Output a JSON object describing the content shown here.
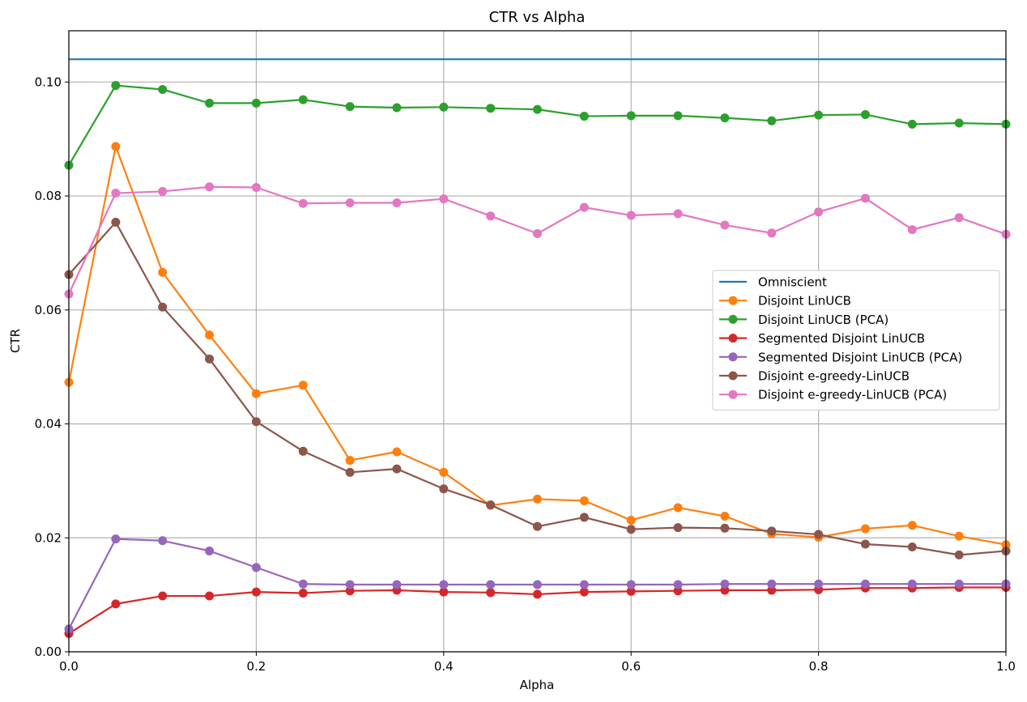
{
  "chart_data": {
    "type": "line",
    "title": "CTR vs Alpha",
    "xlabel": "Alpha",
    "ylabel": "CTR",
    "xlim": [
      0.0,
      1.0
    ],
    "ylim": [
      0.0,
      0.109
    ],
    "x_ticks": [
      0.0,
      0.2,
      0.4,
      0.6,
      0.8,
      1.0
    ],
    "x_tick_labels": [
      "0.0",
      "0.2",
      "0.4",
      "0.6",
      "0.8",
      "1.0"
    ],
    "y_ticks": [
      0.0,
      0.02,
      0.04,
      0.06,
      0.08,
      0.1
    ],
    "y_tick_labels": [
      "0.00",
      "0.02",
      "0.04",
      "0.06",
      "0.08",
      "0.10"
    ],
    "grid": true,
    "legend_position": "center-right",
    "x": [
      0.0,
      0.05,
      0.1,
      0.15,
      0.2,
      0.25,
      0.3,
      0.35,
      0.4,
      0.45,
      0.5,
      0.55,
      0.6,
      0.65,
      0.7,
      0.75,
      0.8,
      0.85,
      0.9,
      0.95,
      1.0
    ],
    "series": [
      {
        "name": "Omniscient",
        "color": "#1f77b4",
        "markers": false,
        "x": [
          0.0,
          1.0
        ],
        "values": [
          0.104,
          0.104
        ]
      },
      {
        "name": "Disjoint LinUCB",
        "color": "#ff7f0e",
        "markers": true,
        "values": [
          0.0473,
          0.0887,
          0.0666,
          0.0556,
          0.0453,
          0.0468,
          0.0336,
          0.0351,
          0.0315,
          0.0257,
          0.0268,
          0.0265,
          0.0231,
          0.0253,
          0.0238,
          0.0207,
          0.0201,
          0.0216,
          0.0222,
          0.0203,
          0.0188
        ]
      },
      {
        "name": "Disjoint LinUCB (PCA)",
        "color": "#2ca02c",
        "markers": true,
        "values": [
          0.0854,
          0.0994,
          0.0987,
          0.0963,
          0.0963,
          0.0969,
          0.0957,
          0.0955,
          0.0956,
          0.0954,
          0.0952,
          0.094,
          0.0941,
          0.0941,
          0.0937,
          0.0932,
          0.0942,
          0.0943,
          0.0926,
          0.0928,
          0.0926
        ]
      },
      {
        "name": "Segmented Disjoint LinUCB",
        "color": "#d62728",
        "markers": true,
        "values": [
          0.0032,
          0.0084,
          0.0098,
          0.0098,
          0.0105,
          0.0103,
          0.0107,
          0.0108,
          0.0105,
          0.0104,
          0.0101,
          0.0105,
          0.0106,
          0.0107,
          0.0108,
          0.0108,
          0.0109,
          0.0112,
          0.0112,
          0.0113,
          0.0113
        ]
      },
      {
        "name": "Segmented Disjoint LinUCB (PCA)",
        "color": "#9467bd",
        "markers": true,
        "values": [
          0.004,
          0.0198,
          0.0195,
          0.0177,
          0.0148,
          0.0119,
          0.0118,
          0.0118,
          0.0118,
          0.0118,
          0.0118,
          0.0118,
          0.0118,
          0.0118,
          0.0119,
          0.0119,
          0.0119,
          0.0119,
          0.0119,
          0.0119,
          0.0119
        ]
      },
      {
        "name": "Disjoint e-greedy-LinUCB",
        "color": "#8c564b",
        "markers": true,
        "values": [
          0.0662,
          0.0754,
          0.0605,
          0.0514,
          0.0404,
          0.0352,
          0.0315,
          0.0321,
          0.0286,
          0.0258,
          0.022,
          0.0236,
          0.0215,
          0.0218,
          0.0217,
          0.0212,
          0.0206,
          0.0189,
          0.0184,
          0.017,
          0.0177
        ]
      },
      {
        "name": "Disjoint e-greedy-LinUCB (PCA)",
        "color": "#e377c2",
        "markers": true,
        "values": [
          0.0628,
          0.0805,
          0.0808,
          0.0816,
          0.0815,
          0.0787,
          0.0788,
          0.0788,
          0.0795,
          0.0765,
          0.0734,
          0.078,
          0.0766,
          0.0769,
          0.0749,
          0.0735,
          0.0772,
          0.0796,
          0.0741,
          0.0762,
          0.0733
        ]
      }
    ]
  }
}
